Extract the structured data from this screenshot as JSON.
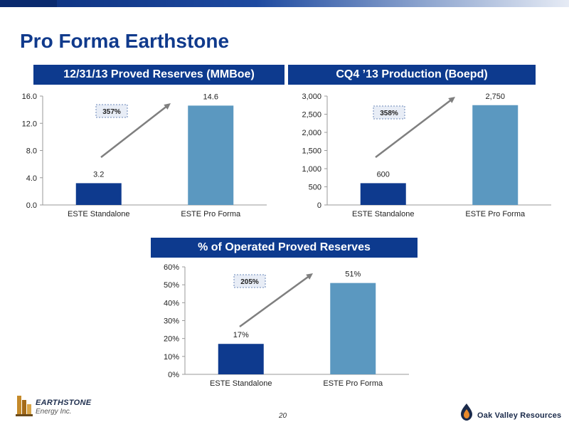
{
  "slide": {
    "title": "Pro Forma Earthstone",
    "page_number": "20"
  },
  "panels": {
    "reserves": {
      "header": "12/31/13 Proved Reserves (MMBoe)"
    },
    "production": {
      "header": "CQ4 ’13 Production (Boepd)"
    },
    "operated": {
      "header": "% of Operated Proved Reserves"
    }
  },
  "logos": {
    "left": {
      "name": "EARTHSTONE",
      "sub": "Energy Inc."
    },
    "right": {
      "name": "Oak Valley Resources"
    }
  },
  "colors": {
    "header_bg": "#0d3a8e",
    "title": "#103a8c",
    "standalone_bar": "#0e3a8e",
    "proforma_bar": "#5b98c0",
    "arrow": "#7f7f7f"
  },
  "chart_data": [
    {
      "type": "bar",
      "title": "12/31/13 Proved Reserves (MMBoe)",
      "categories": [
        "ESTE Standalone",
        "ESTE Pro Forma"
      ],
      "values": [
        3.2,
        14.6
      ],
      "data_labels": [
        "3.2",
        "14.6"
      ],
      "ylim": [
        0,
        16
      ],
      "yticks": [
        "0.0",
        "4.0",
        "8.0",
        "12.0",
        "16.0"
      ],
      "annotation": "357%",
      "grid": false
    },
    {
      "type": "bar",
      "title": "CQ4 ’13 Production (Boepd)",
      "categories": [
        "ESTE Standalone",
        "ESTE Pro Forma"
      ],
      "values": [
        600,
        2750
      ],
      "data_labels": [
        "600",
        "2,750"
      ],
      "ylim": [
        0,
        3000
      ],
      "yticks": [
        "0",
        "500",
        "1,000",
        "1,500",
        "2,000",
        "2,500",
        "3,000"
      ],
      "annotation": "358%",
      "grid": false
    },
    {
      "type": "bar",
      "title": "% of Operated Proved Reserves",
      "categories": [
        "ESTE Standalone",
        "ESTE Pro Forma"
      ],
      "values": [
        17,
        51
      ],
      "data_labels": [
        "17%",
        "51%"
      ],
      "ylim": [
        0,
        60
      ],
      "yticks": [
        "0%",
        "10%",
        "20%",
        "30%",
        "40%",
        "50%",
        "60%"
      ],
      "annotation": "205%",
      "grid": false
    }
  ]
}
